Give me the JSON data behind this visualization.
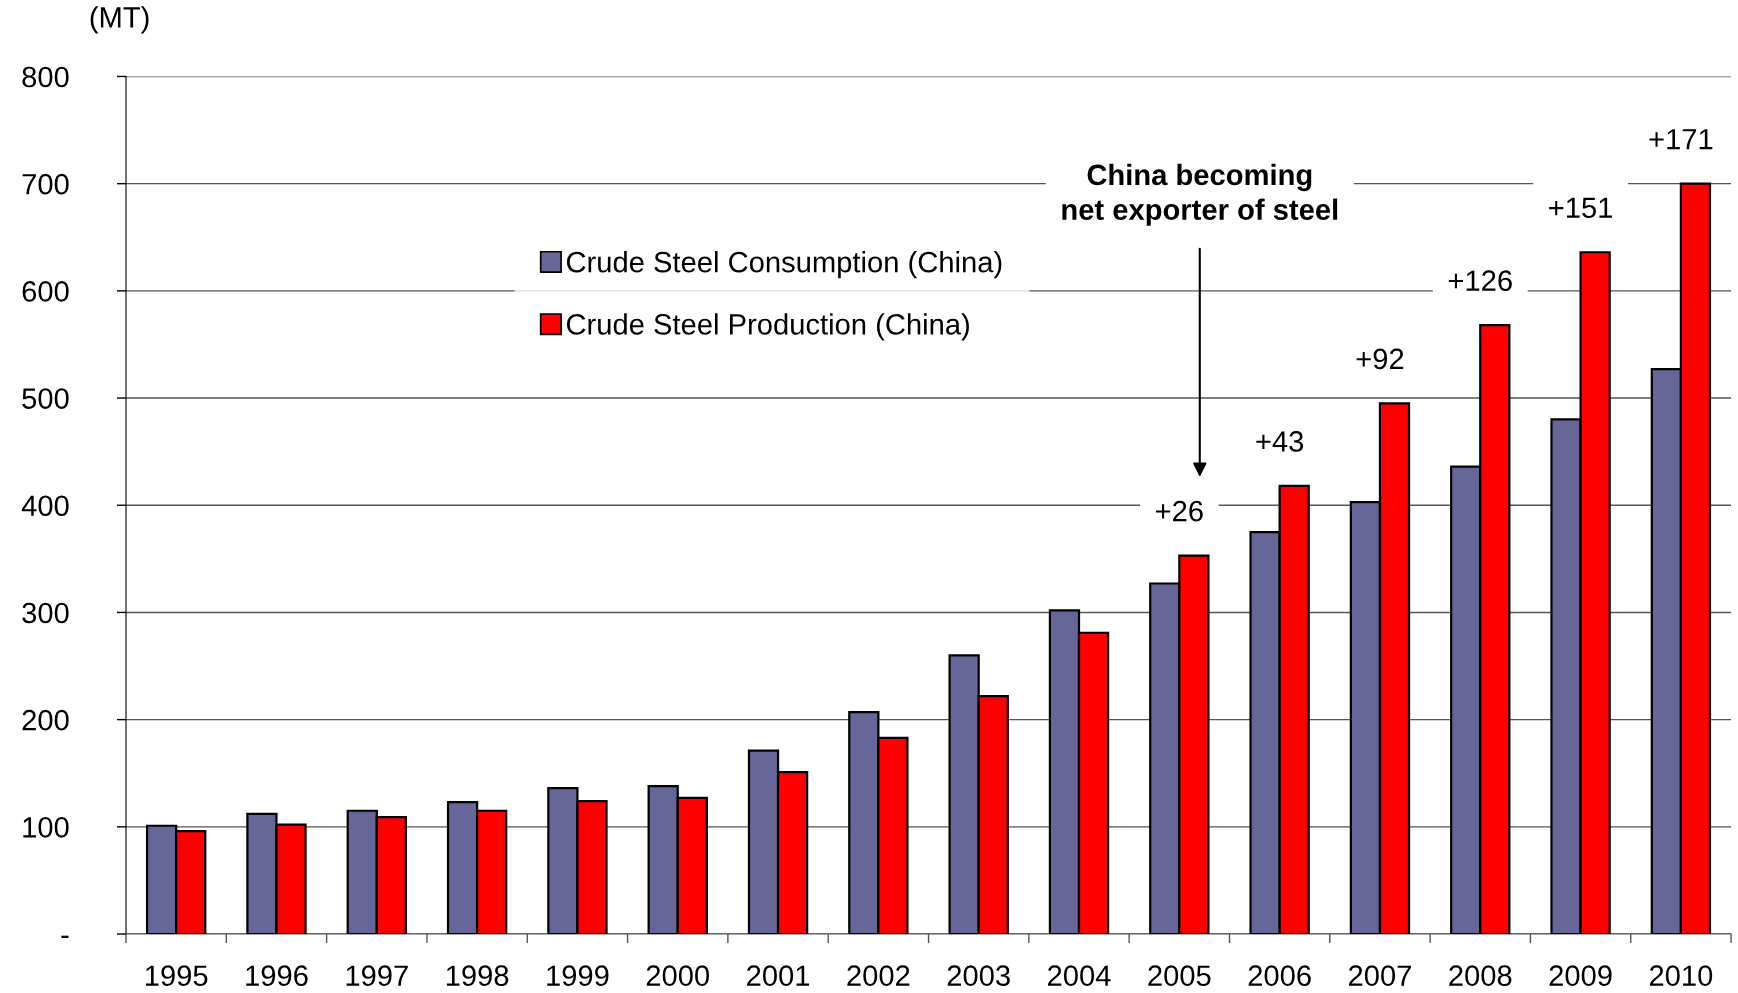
{
  "chart_data": {
    "type": "bar",
    "categories": [
      "1995",
      "1996",
      "1997",
      "1998",
      "1999",
      "2000",
      "2001",
      "2002",
      "2003",
      "2004",
      "2005",
      "2006",
      "2007",
      "2008",
      "2009",
      "2010"
    ],
    "series": [
      {
        "name": "Crude Steel Consumption (China)",
        "color": "#666699",
        "values": [
          101,
          112,
          115,
          123,
          136,
          138,
          171,
          207,
          260,
          302,
          327,
          375,
          403,
          436,
          480,
          527
        ]
      },
      {
        "name": "Crude Steel Production (China)",
        "color": "#ff0000",
        "values": [
          96,
          102,
          109,
          115,
          124,
          127,
          151,
          183,
          222,
          281,
          353,
          418,
          495,
          568,
          636,
          700
        ]
      }
    ],
    "ylabel": "(MT)",
    "ylim": [
      0,
      800
    ],
    "yticks": [
      {
        "value": 0,
        "label": "-"
      },
      100,
      200,
      300,
      400,
      500,
      600,
      700,
      800
    ],
    "grid": "y",
    "legend": "top",
    "annotations": [
      "China becoming\nnet exporter of steel",
      {
        "text": "+26",
        "x": "2005",
        "y": 353
      },
      {
        "text": "+43",
        "x": "2006",
        "y": 418
      },
      {
        "text": "+92",
        "x": "2007",
        "y": 495
      },
      {
        "text": "+126",
        "x": "2008",
        "y": 568
      },
      {
        "text": "+151",
        "x": "2009",
        "y": 636
      },
      {
        "text": "+171",
        "x": "2010",
        "y": 700
      }
    ]
  }
}
